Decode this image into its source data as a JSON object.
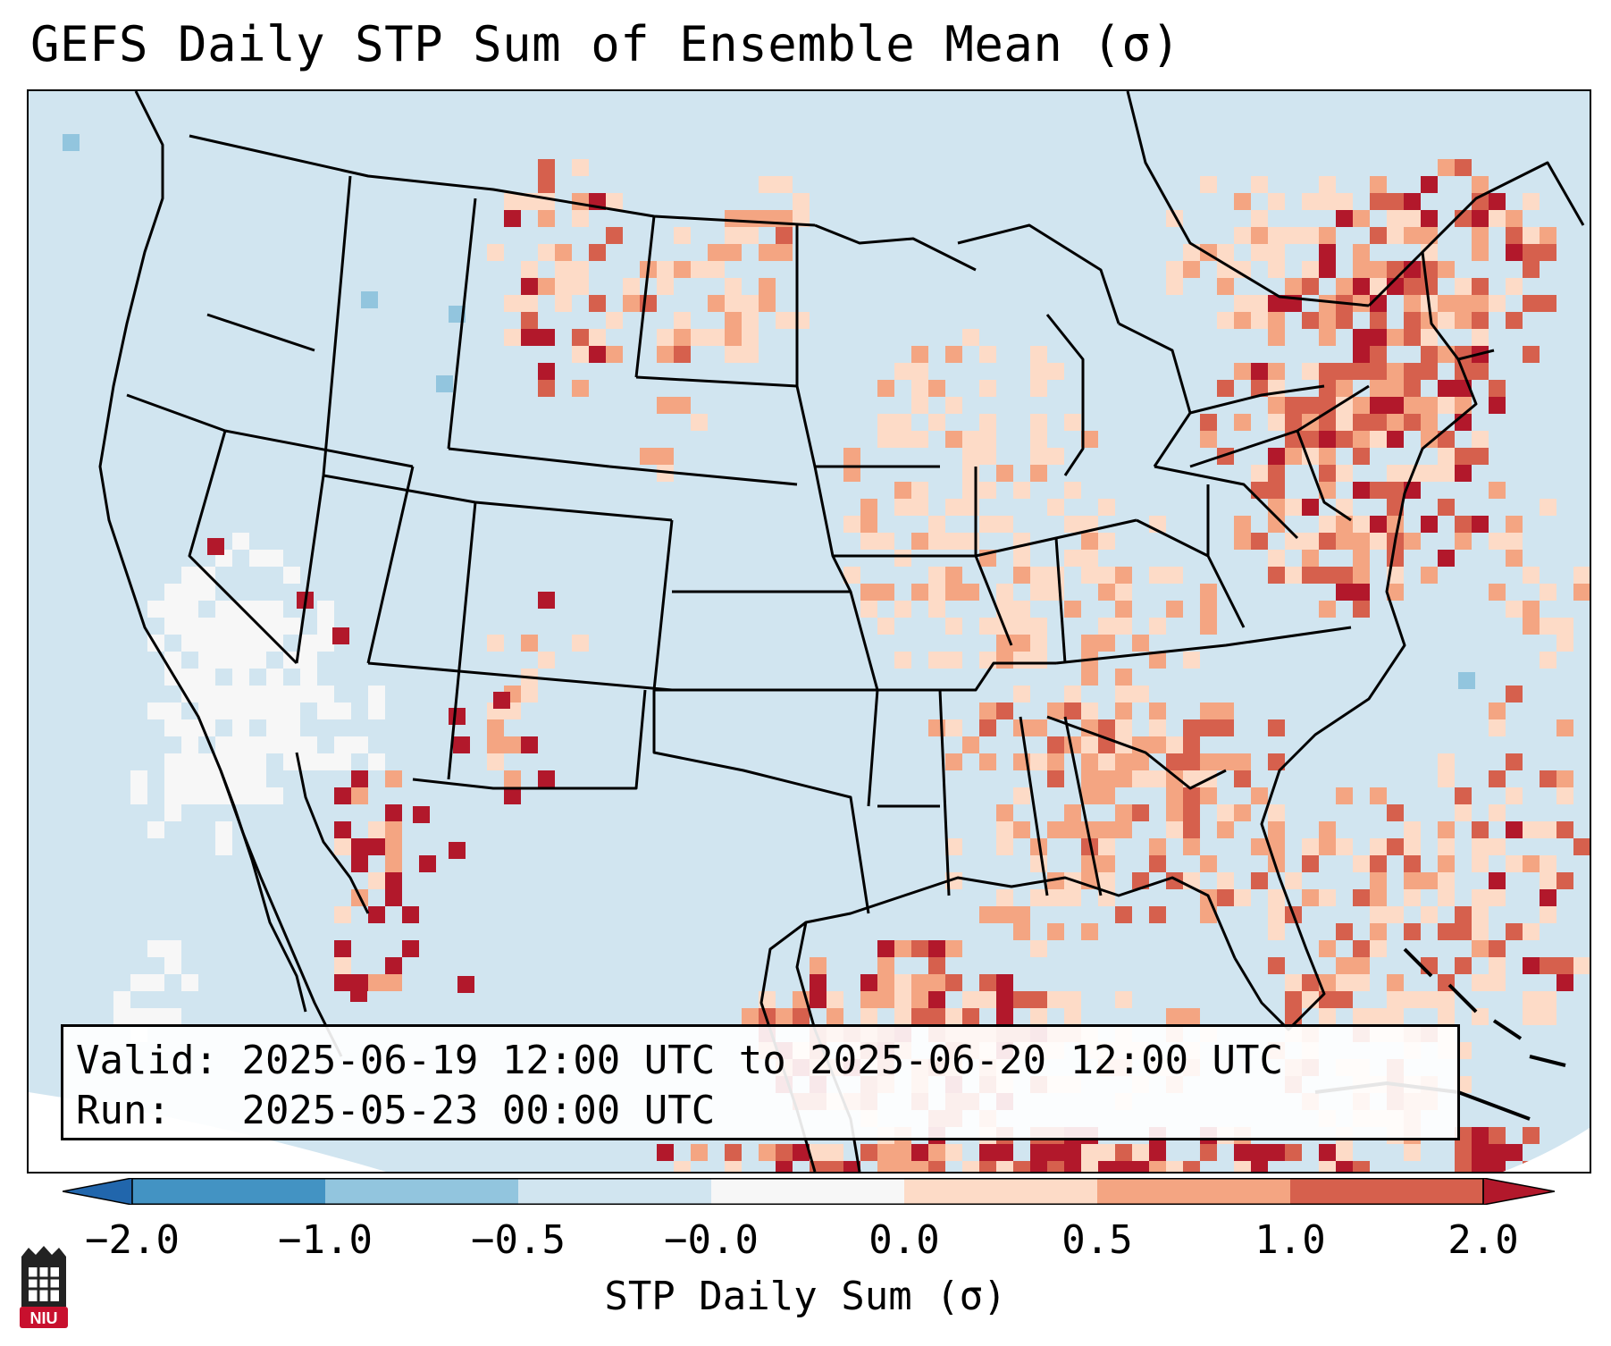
{
  "title": "GEFS Daily STP Sum of Ensemble Mean (σ)",
  "info": {
    "valid_label": "Valid:",
    "valid_value": "2025-06-19 12:00 UTC to 2025-06-20 12:00 UTC",
    "run_label": "Run:",
    "run_value": "2025-05-23 00:00 UTC"
  },
  "colorbar": {
    "label": "STP Daily Sum (σ)",
    "ticks": [
      "−2.0",
      "−1.0",
      "−0.5",
      "−0.0",
      "0.0",
      "0.5",
      "1.0",
      "2.0"
    ],
    "colors": [
      "#4393c3",
      "#92c5de",
      "#d1e5f0",
      "#f7f7f7",
      "#fddbc7",
      "#f4a582",
      "#d6604d",
      "#b2182b"
    ],
    "under_color": "#2166ac",
    "over_color": "#b2182b"
  },
  "logo": {
    "text": "NIU",
    "color": "#c8102e"
  },
  "colors": {
    "ocean": "#d1e5f0",
    "land_neutral": "#d1e5f0",
    "border": "#000000"
  }
}
